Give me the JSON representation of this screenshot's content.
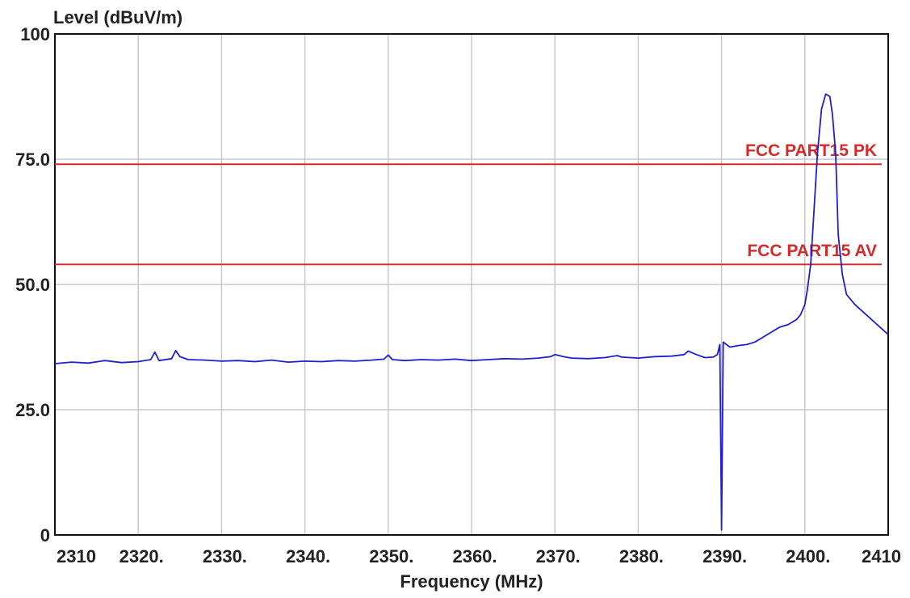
{
  "chart_data": {
    "type": "line",
    "title": "",
    "xlabel": "Frequency (MHz)",
    "ylabel": "Level (dBuV/m)",
    "xlim": [
      2310,
      2410
    ],
    "ylim": [
      0,
      100
    ],
    "x_ticks": [
      2310,
      2320,
      2330,
      2340,
      2350,
      2360,
      2370,
      2380,
      2390,
      2400,
      2410
    ],
    "x_tick_labels": [
      "2310",
      "2320.",
      "2330.",
      "2340.",
      "2350.",
      "2360.",
      "2370.",
      "2380.",
      "2390.",
      "2400.",
      "2410"
    ],
    "y_ticks": [
      0,
      25,
      50,
      75,
      100
    ],
    "y_tick_labels": [
      "0",
      "25.0",
      "50.0",
      "75.0",
      "100"
    ],
    "grid": true,
    "limits": [
      {
        "name": "FCC PART15  PK",
        "value": 74,
        "color": "#d42a2a"
      },
      {
        "name": "FCC PART15  AV",
        "value": 54,
        "color": "#d42a2a"
      }
    ],
    "series": [
      {
        "color": "#1f1fd0",
        "x": [
          2310,
          2312,
          2314,
          2316,
          2318,
          2320,
          2321.5,
          2322,
          2322.5,
          2324,
          2324.5,
          2325,
          2326,
          2328,
          2330,
          2332,
          2334,
          2336,
          2338,
          2340,
          2342,
          2344,
          2346,
          2348,
          2349.5,
          2350,
          2350.5,
          2352,
          2354,
          2356,
          2358,
          2360,
          2362,
          2364,
          2366,
          2368,
          2369.5,
          2370,
          2371,
          2372,
          2374,
          2376,
          2377.5,
          2378,
          2380,
          2382,
          2384,
          2385.5,
          2386,
          2387,
          2388,
          2389,
          2389.5,
          2389.8,
          2390,
          2390.2,
          2391,
          2392,
          2393,
          2394,
          2395,
          2396,
          2397,
          2398,
          2399,
          2399.5,
          2400,
          2400.3,
          2400.7,
          2401,
          2401.5,
          2402,
          2402.5,
          2403,
          2403.3,
          2403.7,
          2404,
          2404.5,
          2405,
          2406,
          2407,
          2408,
          2409,
          2410
        ],
        "y": [
          34.2,
          34.5,
          34.3,
          34.8,
          34.4,
          34.6,
          35.0,
          36.5,
          34.8,
          35.2,
          36.8,
          35.6,
          35.0,
          34.9,
          34.7,
          34.8,
          34.6,
          34.9,
          34.5,
          34.7,
          34.6,
          34.8,
          34.7,
          34.9,
          35.1,
          35.9,
          35.0,
          34.8,
          35.0,
          34.9,
          35.1,
          34.8,
          35.0,
          35.2,
          35.1,
          35.3,
          35.6,
          36.0,
          35.6,
          35.3,
          35.2,
          35.4,
          35.8,
          35.5,
          35.3,
          35.6,
          35.7,
          36.0,
          36.7,
          36.0,
          35.4,
          35.5,
          36.0,
          38.0,
          1.0,
          38.5,
          37.5,
          37.8,
          38.0,
          38.5,
          39.5,
          40.5,
          41.5,
          42.0,
          43.0,
          44.0,
          46.0,
          49.0,
          54.0,
          62.0,
          76.0,
          85.0,
          88.0,
          87.5,
          84.0,
          76.0,
          60.0,
          52.0,
          48.0,
          46.0,
          44.5,
          43.0,
          41.5,
          40.0
        ]
      }
    ]
  }
}
